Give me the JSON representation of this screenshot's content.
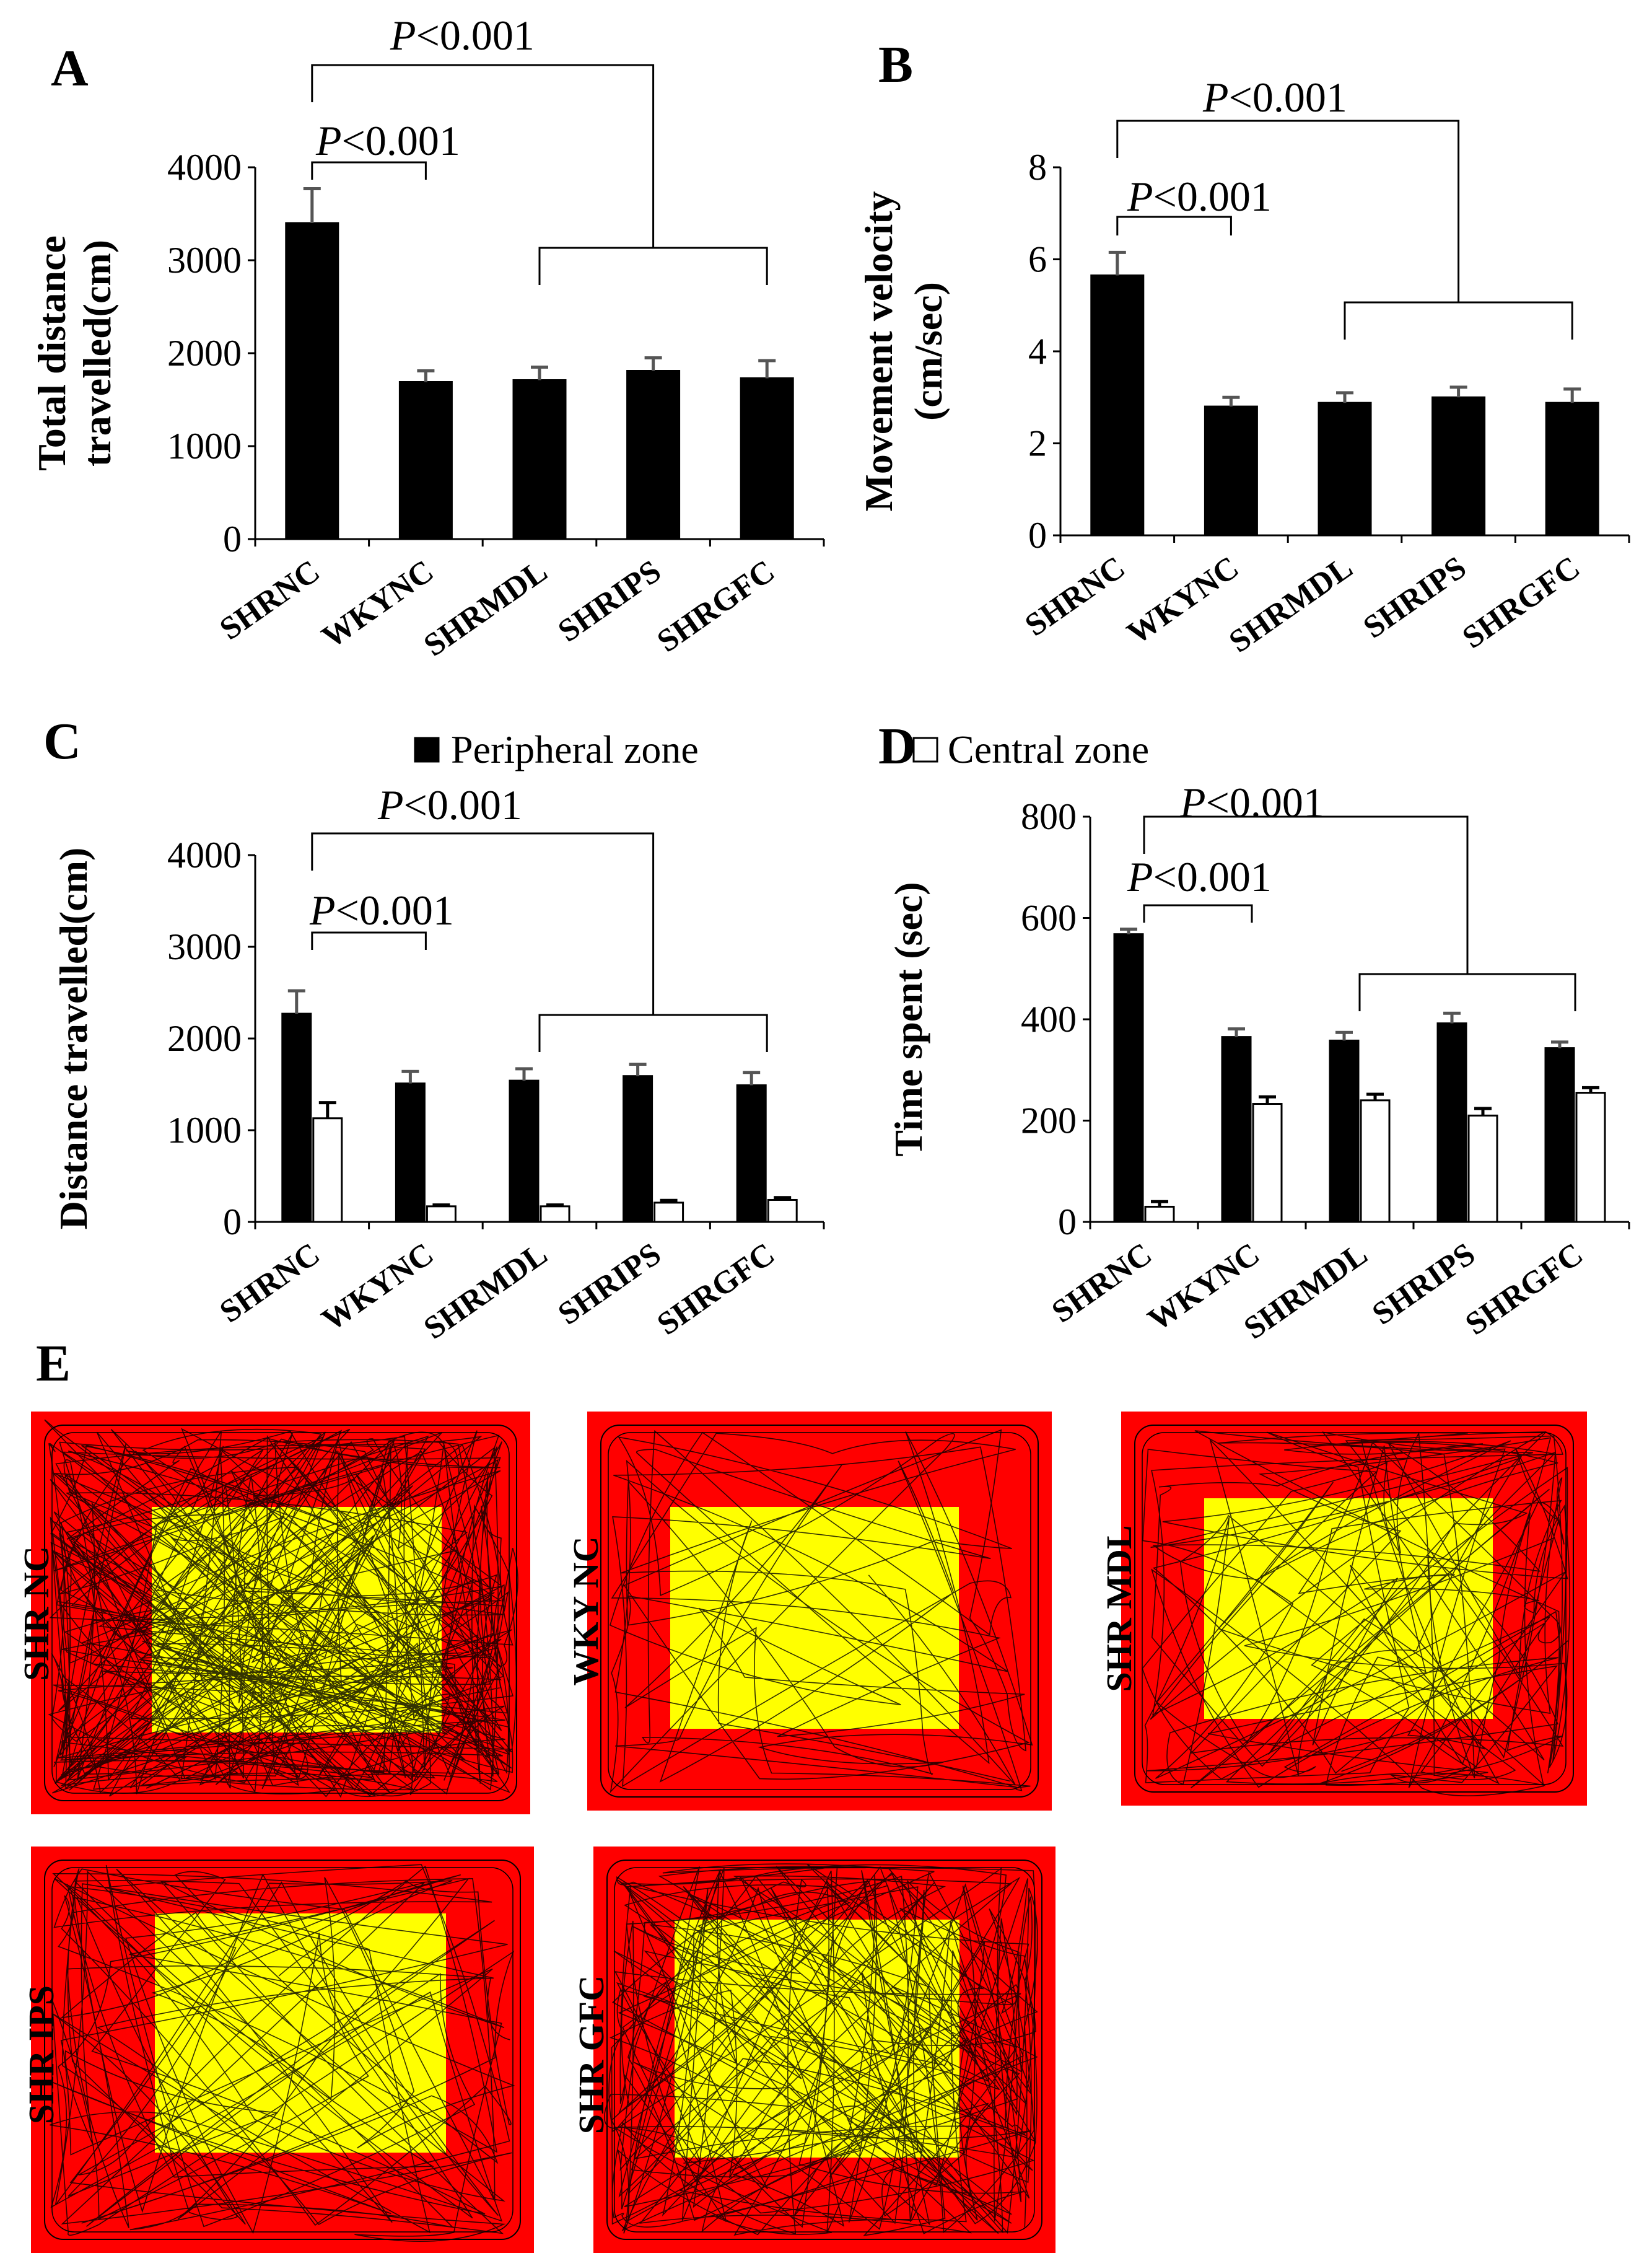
{
  "categories": [
    "SHRNC",
    "WKYNC",
    "SHRMDL",
    "SHRIPS",
    "SHRGFC"
  ],
  "chart_data": [
    {
      "id": "A",
      "panel_label": "A",
      "type": "bar",
      "ylabel_lines": [
        "Total distance",
        "travelled(cm)"
      ],
      "ylim": [
        0,
        4000
      ],
      "yticks": [
        0,
        1000,
        2000,
        3000,
        4000
      ],
      "series": [
        {
          "name": "Total distance travelled",
          "fill": "black",
          "values": [
            3400,
            1690,
            1710,
            1810,
            1730
          ],
          "errors": [
            370,
            120,
            140,
            140,
            190
          ]
        }
      ],
      "significance": [
        {
          "text": "P<0.001",
          "italic": "P",
          "rest": "<0.001",
          "type": "pair",
          "from": 0,
          "to": 1
        },
        {
          "text": "P<0.001",
          "italic": "P",
          "rest": "<0.001",
          "type": "group",
          "from": 0,
          "group": [
            2,
            3,
            4
          ]
        }
      ]
    },
    {
      "id": "B",
      "panel_label": "B",
      "type": "bar",
      "ylabel_lines": [
        "Movement  velocity",
        "(cm/sec)"
      ],
      "ylim": [
        0,
        8
      ],
      "yticks": [
        0,
        2,
        4,
        6,
        8
      ],
      "series": [
        {
          "name": "Movement velocity",
          "fill": "black",
          "values": [
            5.65,
            2.8,
            2.88,
            3.0,
            2.88
          ],
          "errors": [
            0.5,
            0.2,
            0.22,
            0.22,
            0.3
          ]
        }
      ],
      "significance": [
        {
          "text": "P<0.001",
          "italic": "P",
          "rest": "<0.001",
          "type": "pair",
          "from": 0,
          "to": 1
        },
        {
          "text": "P<0.001",
          "italic": "P",
          "rest": "<0.001",
          "type": "group",
          "from": 0,
          "group": [
            2,
            3,
            4
          ]
        }
      ]
    },
    {
      "id": "C",
      "panel_label": "C",
      "type": "bar",
      "ylabel_lines": [
        "Distance travelled(cm)"
      ],
      "ylim": [
        0,
        4000
      ],
      "yticks": [
        0,
        1000,
        2000,
        3000,
        4000
      ],
      "legend": {
        "marker": "filled",
        "text": "Peripheral zone"
      },
      "series": [
        {
          "name": "Peripheral zone",
          "fill": "black",
          "values": [
            2270,
            1510,
            1540,
            1590,
            1490
          ],
          "errors": [
            250,
            130,
            130,
            130,
            140
          ]
        },
        {
          "name": "Central zone",
          "fill": "white",
          "values": [
            1130,
            170,
            170,
            210,
            240
          ],
          "errors": [
            170,
            15,
            15,
            25,
            25
          ]
        }
      ],
      "significance": [
        {
          "text": "P<0.001",
          "italic": "P",
          "rest": "<0.001",
          "type": "pair",
          "from": 0,
          "to": 1
        },
        {
          "text": "P<0.001",
          "italic": "P",
          "rest": "<0.001",
          "type": "group",
          "from": 0,
          "group": [
            2,
            3,
            4
          ]
        }
      ]
    },
    {
      "id": "D",
      "panel_label": "D",
      "type": "bar",
      "ylabel_lines": [
        "Time spent (sec)"
      ],
      "ylim": [
        0,
        800
      ],
      "yticks": [
        0,
        200,
        400,
        600,
        800
      ],
      "legend": {
        "marker": "open",
        "text": "Central zone"
      },
      "series": [
        {
          "name": "Peripheral zone",
          "fill": "black",
          "values": [
            568,
            365,
            358,
            392,
            343
          ],
          "errors": [
            10,
            16,
            16,
            20,
            12
          ]
        },
        {
          "name": "Central zone",
          "fill": "white",
          "values": [
            30,
            233,
            240,
            210,
            255
          ],
          "errors": [
            10,
            14,
            12,
            14,
            10
          ]
        }
      ],
      "significance": [
        {
          "text": "P<0.001",
          "italic": "P",
          "rest": "<0.001",
          "type": "pair",
          "from": 0,
          "to": 1
        },
        {
          "text": "P<0.001",
          "italic": "P",
          "rest": "<0.001",
          "type": "group",
          "from": 0,
          "group": [
            2,
            3,
            4
          ]
        }
      ]
    }
  ],
  "panel_e": {
    "panel_label": "E",
    "colors": {
      "peripheral": "#ff0000",
      "central": "#ffff00",
      "track": "#000000"
    },
    "tracks": [
      {
        "label": "SHR NC",
        "density": 60
      },
      {
        "label": "WKY NC",
        "density": 12
      },
      {
        "label": "SHR MDL",
        "density": 26
      },
      {
        "label": "SHR IPS",
        "density": 22
      },
      {
        "label": "SHR GFC",
        "density": 40
      }
    ]
  }
}
